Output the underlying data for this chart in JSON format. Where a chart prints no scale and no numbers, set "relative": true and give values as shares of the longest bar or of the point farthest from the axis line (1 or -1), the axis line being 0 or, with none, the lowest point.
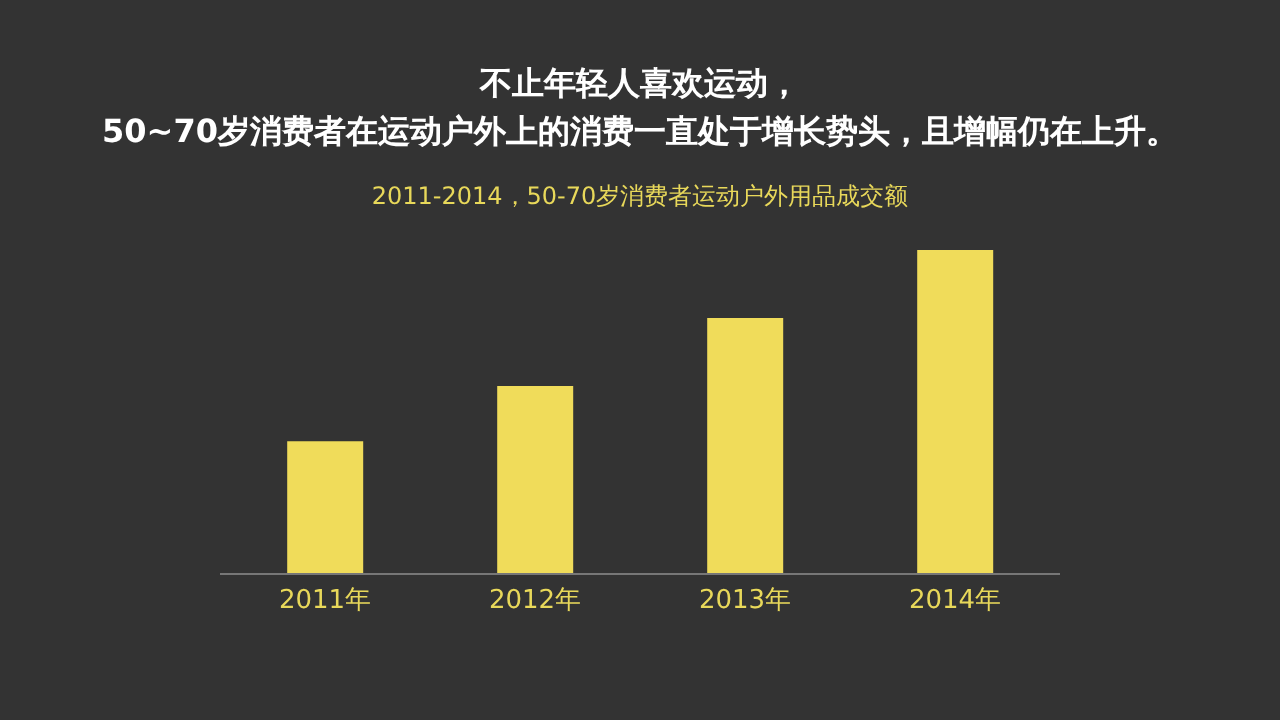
{
  "chart_data": {
    "type": "bar",
    "title": "不止年轻人喜欢运动，\n50~70岁消费者在运动户外上的消费一直处于增长势头，且增幅仍在上升。",
    "subtitle": "2011-2014，50-70岁消费者运动户外用品成交额",
    "categories": [
      "2011年",
      "2012年",
      "2013年",
      "2014年"
    ],
    "values": [
      0.41,
      0.58,
      0.79,
      1
    ],
    "color": "#f0dc5a",
    "relative": true,
    "grid": false,
    "legend": false
  }
}
